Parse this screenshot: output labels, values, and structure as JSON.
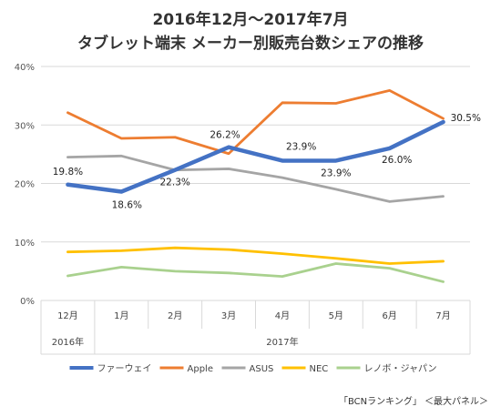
{
  "chart_data": {
    "type": "line",
    "title_line1": "2016年12月～2017年7月",
    "title_line2": "タブレット端末 メーカー別販売台数シェアの推移",
    "categories": [
      "12月",
      "1月",
      "2月",
      "3月",
      "4月",
      "5月",
      "6月",
      "7月"
    ],
    "year_groups": [
      {
        "label": "2016年",
        "span": [
          0,
          0
        ]
      },
      {
        "label": "2017年",
        "span": [
          1,
          7
        ]
      }
    ],
    "ylim": [
      0,
      40
    ],
    "yticks": [
      "0%",
      "10%",
      "20%",
      "30%",
      "40%"
    ],
    "yticks_values": [
      0,
      10,
      20,
      30,
      40
    ],
    "grid": true,
    "legend_position": "bottom",
    "series": [
      {
        "name": "ファーウェイ",
        "color": "#4472C4",
        "values": [
          19.8,
          18.6,
          22.3,
          26.2,
          23.9,
          23.9,
          26.0,
          30.5
        ],
        "labels": [
          "19.8%",
          "18.6%",
          "22.3%",
          "26.2%",
          "23.9%",
          "23.9%",
          "26.0%",
          "30.5%"
        ]
      },
      {
        "name": "Apple",
        "color": "#ED7D31",
        "values": [
          32.1,
          27.7,
          27.9,
          25.1,
          33.8,
          33.7,
          35.9,
          31.1
        ]
      },
      {
        "name": "ASUS",
        "color": "#A5A5A5",
        "values": [
          24.5,
          24.7,
          22.3,
          22.5,
          21.0,
          19.0,
          16.9,
          17.8
        ]
      },
      {
        "name": "NEC",
        "color": "#FFC000",
        "values": [
          8.3,
          8.5,
          9.0,
          8.7,
          8.0,
          7.2,
          6.3,
          6.7
        ]
      },
      {
        "name": "レノボ・ジャパン",
        "color": "#A9D18E",
        "values": [
          4.2,
          5.7,
          5.0,
          4.7,
          4.1,
          6.3,
          5.5,
          3.2
        ]
      }
    ],
    "source": "「BCNランキング」 ＜最大パネル＞"
  }
}
